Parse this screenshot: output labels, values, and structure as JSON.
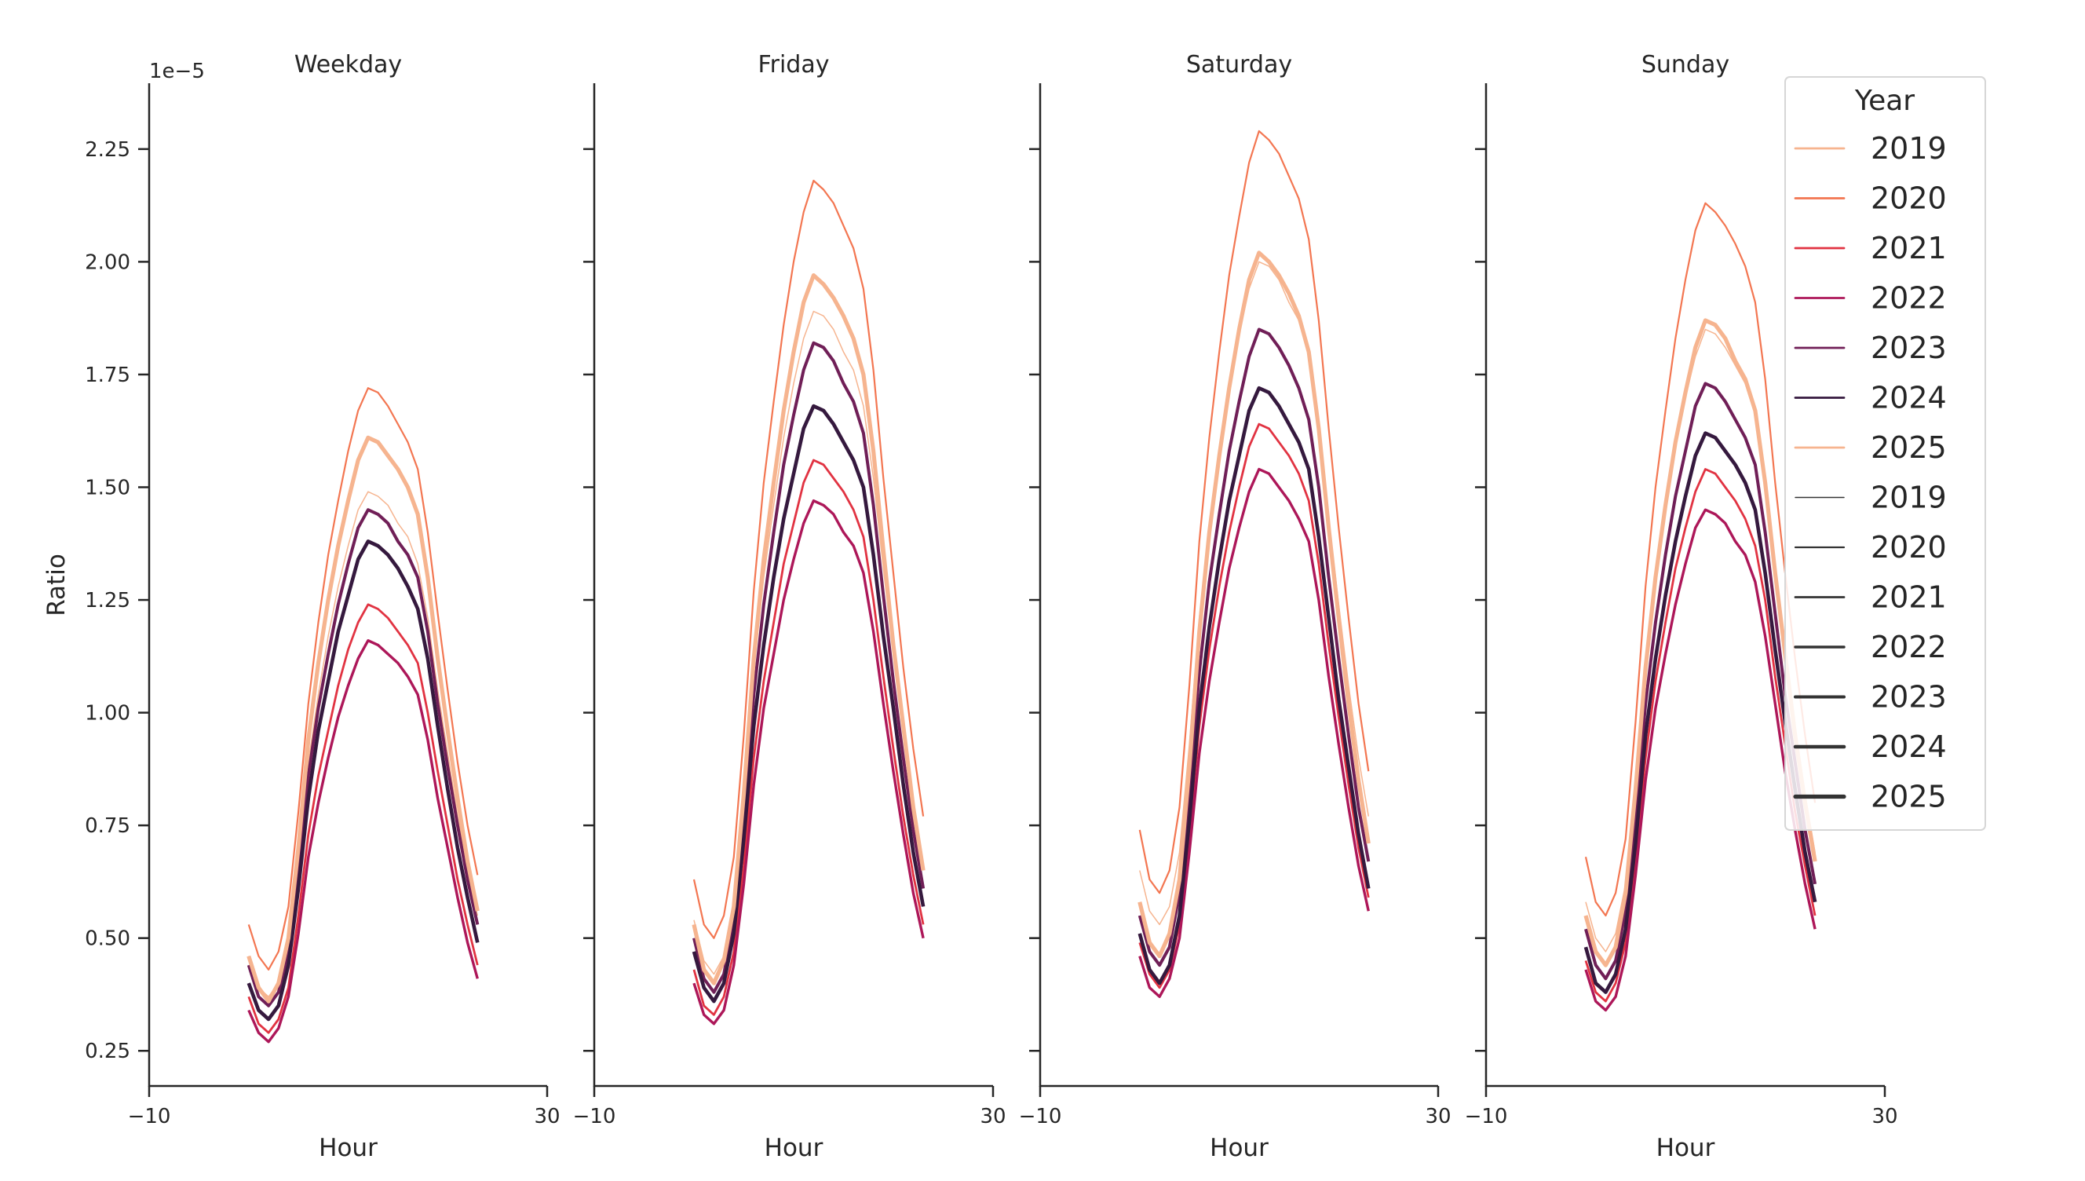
{
  "chart_data": {
    "type": "line",
    "ylabel": "Ratio",
    "xlabel": "Hour",
    "y_offset_label": "1e−5",
    "xlim": [
      -10,
      30
    ],
    "ylim": [
      0.172,
      2.396
    ],
    "x_ticks": [
      -10,
      30
    ],
    "x_tick_labels": [
      "−10",
      "30"
    ],
    "y_ticks": [
      0.25,
      0.5,
      0.75,
      1.0,
      1.25,
      1.5,
      1.75,
      2.0,
      2.25
    ],
    "y_tick_labels": [
      "0.25",
      "0.50",
      "0.75",
      "1.00",
      "1.25",
      "1.50",
      "1.75",
      "2.00",
      "2.25"
    ],
    "grid": false,
    "legend_placement": "top-right",
    "hours": [
      0,
      1,
      2,
      3,
      4,
      5,
      6,
      7,
      8,
      9,
      10,
      11,
      12,
      13,
      14,
      15,
      16,
      17,
      18,
      19,
      20,
      21,
      22,
      23
    ],
    "colors": {
      "2019": "#f6b48f",
      "2020": "#f37651",
      "2021": "#e13342",
      "2022": "#ad1759",
      "2023": "#701f57",
      "2024": "#35193e",
      "2025": "#f6b48f"
    },
    "panels": [
      {
        "title": "Weekday",
        "series": [
          {
            "name": "2019",
            "values": [
              0.46,
              0.39,
              0.37,
              0.4,
              0.49,
              0.67,
              0.89,
              1.04,
              1.17,
              1.28,
              1.37,
              1.45,
              1.49,
              1.48,
              1.46,
              1.42,
              1.39,
              1.33,
              1.21,
              1.05,
              0.91,
              0.77,
              0.65,
              0.55
            ]
          },
          {
            "name": "2020",
            "values": [
              0.53,
              0.46,
              0.43,
              0.47,
              0.57,
              0.78,
              1.02,
              1.2,
              1.35,
              1.47,
              1.58,
              1.67,
              1.72,
              1.71,
              1.68,
              1.64,
              1.6,
              1.54,
              1.4,
              1.22,
              1.05,
              0.89,
              0.75,
              0.64
            ]
          },
          {
            "name": "2021",
            "values": [
              0.37,
              0.31,
              0.29,
              0.32,
              0.39,
              0.55,
              0.73,
              0.86,
              0.96,
              1.06,
              1.14,
              1.2,
              1.24,
              1.23,
              1.21,
              1.18,
              1.15,
              1.11,
              1.0,
              0.87,
              0.75,
              0.63,
              0.53,
              0.44
            ]
          },
          {
            "name": "2022",
            "values": [
              0.34,
              0.29,
              0.27,
              0.3,
              0.37,
              0.51,
              0.68,
              0.8,
              0.9,
              0.99,
              1.06,
              1.12,
              1.16,
              1.15,
              1.13,
              1.11,
              1.08,
              1.04,
              0.94,
              0.81,
              0.7,
              0.59,
              0.49,
              0.41
            ]
          },
          {
            "name": "2023",
            "values": [
              0.44,
              0.37,
              0.35,
              0.38,
              0.47,
              0.65,
              0.86,
              1.01,
              1.13,
              1.24,
              1.33,
              1.41,
              1.45,
              1.44,
              1.42,
              1.38,
              1.35,
              1.3,
              1.18,
              1.02,
              0.88,
              0.75,
              0.63,
              0.53
            ]
          },
          {
            "name": "2024",
            "values": [
              0.4,
              0.34,
              0.32,
              0.35,
              0.44,
              0.61,
              0.81,
              0.96,
              1.07,
              1.18,
              1.26,
              1.34,
              1.38,
              1.37,
              1.35,
              1.32,
              1.28,
              1.23,
              1.12,
              0.97,
              0.83,
              0.7,
              0.59,
              0.49
            ]
          },
          {
            "name": "2025",
            "values": [
              0.46,
              0.39,
              0.36,
              0.4,
              0.5,
              0.7,
              0.94,
              1.11,
              1.25,
              1.37,
              1.47,
              1.56,
              1.61,
              1.6,
              1.57,
              1.54,
              1.5,
              1.44,
              1.3,
              1.12,
              0.96,
              0.81,
              0.67,
              0.56
            ]
          }
        ]
      },
      {
        "title": "Friday",
        "series": [
          {
            "name": "2019",
            "values": [
              0.54,
              0.45,
              0.42,
              0.46,
              0.58,
              0.82,
              1.1,
              1.3,
              1.46,
              1.61,
              1.73,
              1.83,
              1.89,
              1.88,
              1.85,
              1.8,
              1.76,
              1.68,
              1.52,
              1.32,
              1.13,
              0.95,
              0.79,
              0.66
            ]
          },
          {
            "name": "2020",
            "values": [
              0.63,
              0.53,
              0.5,
              0.55,
              0.68,
              0.95,
              1.27,
              1.51,
              1.69,
              1.86,
              2.0,
              2.11,
              2.18,
              2.16,
              2.13,
              2.08,
              2.03,
              1.94,
              1.76,
              1.52,
              1.31,
              1.1,
              0.92,
              0.77
            ]
          },
          {
            "name": "2021",
            "values": [
              0.43,
              0.35,
              0.33,
              0.37,
              0.47,
              0.66,
              0.9,
              1.07,
              1.2,
              1.33,
              1.42,
              1.51,
              1.56,
              1.55,
              1.52,
              1.49,
              1.45,
              1.39,
              1.25,
              1.08,
              0.92,
              0.77,
              0.64,
              0.53
            ]
          },
          {
            "name": "2022",
            "values": [
              0.4,
              0.33,
              0.31,
              0.34,
              0.44,
              0.62,
              0.84,
              1.01,
              1.13,
              1.25,
              1.34,
              1.42,
              1.47,
              1.46,
              1.44,
              1.4,
              1.37,
              1.31,
              1.18,
              1.02,
              0.87,
              0.73,
              0.6,
              0.5
            ]
          },
          {
            "name": "2023",
            "values": [
              0.5,
              0.41,
              0.38,
              0.42,
              0.54,
              0.77,
              1.04,
              1.24,
              1.4,
              1.55,
              1.66,
              1.76,
              1.82,
              1.81,
              1.78,
              1.73,
              1.69,
              1.62,
              1.46,
              1.26,
              1.07,
              0.9,
              0.74,
              0.61
            ]
          },
          {
            "name": "2024",
            "values": [
              0.47,
              0.39,
              0.36,
              0.4,
              0.51,
              0.72,
              0.97,
              1.15,
              1.3,
              1.43,
              1.53,
              1.63,
              1.68,
              1.67,
              1.64,
              1.6,
              1.56,
              1.5,
              1.35,
              1.17,
              1.01,
              0.84,
              0.69,
              0.57
            ]
          },
          {
            "name": "2025",
            "values": [
              0.53,
              0.43,
              0.4,
              0.45,
              0.57,
              0.82,
              1.12,
              1.34,
              1.51,
              1.67,
              1.8,
              1.91,
              1.97,
              1.95,
              1.92,
              1.88,
              1.83,
              1.75,
              1.58,
              1.36,
              1.15,
              0.97,
              0.79,
              0.65
            ]
          }
        ]
      },
      {
        "title": "Saturday",
        "series": [
          {
            "name": "2019",
            "values": [
              0.65,
              0.56,
              0.53,
              0.57,
              0.69,
              0.93,
              1.21,
              1.41,
              1.57,
              1.72,
              1.84,
              1.94,
              2.0,
              1.99,
              1.96,
              1.91,
              1.87,
              1.79,
              1.63,
              1.43,
              1.24,
              1.06,
              0.9,
              0.77
            ]
          },
          {
            "name": "2020",
            "values": [
              0.74,
              0.63,
              0.6,
              0.65,
              0.79,
              1.06,
              1.38,
              1.61,
              1.8,
              1.97,
              2.1,
              2.22,
              2.29,
              2.27,
              2.24,
              2.19,
              2.14,
              2.05,
              1.87,
              1.63,
              1.41,
              1.21,
              1.02,
              0.87
            ]
          },
          {
            "name": "2021",
            "values": [
              0.49,
              0.42,
              0.39,
              0.43,
              0.53,
              0.73,
              0.97,
              1.14,
              1.28,
              1.4,
              1.5,
              1.59,
              1.64,
              1.63,
              1.6,
              1.57,
              1.53,
              1.47,
              1.33,
              1.15,
              0.99,
              0.84,
              0.7,
              0.59
            ]
          },
          {
            "name": "2022",
            "values": [
              0.46,
              0.39,
              0.37,
              0.41,
              0.5,
              0.69,
              0.91,
              1.07,
              1.2,
              1.32,
              1.41,
              1.49,
              1.54,
              1.53,
              1.5,
              1.47,
              1.43,
              1.38,
              1.25,
              1.08,
              0.93,
              0.79,
              0.66,
              0.56
            ]
          },
          {
            "name": "2023",
            "values": [
              0.55,
              0.47,
              0.44,
              0.48,
              0.6,
              0.82,
              1.09,
              1.29,
              1.44,
              1.58,
              1.69,
              1.79,
              1.85,
              1.84,
              1.81,
              1.77,
              1.72,
              1.65,
              1.5,
              1.3,
              1.12,
              0.95,
              0.79,
              0.67
            ]
          },
          {
            "name": "2024",
            "values": [
              0.51,
              0.43,
              0.4,
              0.44,
              0.55,
              0.76,
              1.01,
              1.19,
              1.34,
              1.47,
              1.57,
              1.67,
              1.72,
              1.71,
              1.68,
              1.64,
              1.6,
              1.54,
              1.39,
              1.21,
              1.03,
              0.88,
              0.73,
              0.61
            ]
          },
          {
            "name": "2025",
            "values": [
              0.58,
              0.49,
              0.46,
              0.51,
              0.63,
              0.88,
              1.18,
              1.4,
              1.57,
              1.72,
              1.85,
              1.96,
              2.02,
              2.0,
              1.97,
              1.93,
              1.88,
              1.8,
              1.63,
              1.41,
              1.21,
              1.02,
              0.85,
              0.71
            ]
          }
        ]
      },
      {
        "title": "Sunday",
        "series": [
          {
            "name": "2019",
            "values": [
              0.58,
              0.5,
              0.47,
              0.51,
              0.62,
              0.84,
              1.1,
              1.3,
              1.45,
              1.59,
              1.7,
              1.79,
              1.85,
              1.84,
              1.81,
              1.77,
              1.73,
              1.66,
              1.51,
              1.31,
              1.13,
              0.97,
              0.82,
              0.69
            ]
          },
          {
            "name": "2020",
            "values": [
              0.68,
              0.58,
              0.55,
              0.6,
              0.72,
              0.98,
              1.28,
              1.5,
              1.67,
              1.83,
              1.96,
              2.07,
              2.13,
              2.11,
              2.08,
              2.04,
              1.99,
              1.91,
              1.74,
              1.51,
              1.31,
              1.12,
              0.95,
              0.8
            ]
          },
          {
            "name": "2021",
            "values": [
              0.45,
              0.38,
              0.36,
              0.4,
              0.49,
              0.68,
              0.9,
              1.07,
              1.2,
              1.32,
              1.41,
              1.49,
              1.54,
              1.53,
              1.5,
              1.47,
              1.43,
              1.37,
              1.25,
              1.08,
              0.93,
              0.78,
              0.66,
              0.55
            ]
          },
          {
            "name": "2022",
            "values": [
              0.43,
              0.36,
              0.34,
              0.37,
              0.46,
              0.64,
              0.85,
              1.01,
              1.13,
              1.24,
              1.33,
              1.41,
              1.45,
              1.44,
              1.42,
              1.38,
              1.35,
              1.29,
              1.17,
              1.02,
              0.87,
              0.74,
              0.62,
              0.52
            ]
          },
          {
            "name": "2023",
            "values": [
              0.52,
              0.44,
              0.41,
              0.45,
              0.56,
              0.77,
              1.02,
              1.2,
              1.35,
              1.48,
              1.58,
              1.68,
              1.73,
              1.72,
              1.69,
              1.65,
              1.61,
              1.55,
              1.4,
              1.22,
              1.04,
              0.89,
              0.74,
              0.62
            ]
          },
          {
            "name": "2024",
            "values": [
              0.48,
              0.4,
              0.38,
              0.42,
              0.52,
              0.71,
              0.95,
              1.12,
              1.26,
              1.38,
              1.48,
              1.57,
              1.62,
              1.61,
              1.58,
              1.55,
              1.51,
              1.45,
              1.31,
              1.14,
              0.98,
              0.83,
              0.69,
              0.58
            ]
          },
          {
            "name": "2025",
            "values": [
              0.55,
              0.47,
              0.44,
              0.48,
              0.6,
              0.83,
              1.1,
              1.3,
              1.46,
              1.6,
              1.71,
              1.81,
              1.87,
              1.86,
              1.83,
              1.78,
              1.74,
              1.67,
              1.51,
              1.31,
              1.13,
              0.95,
              0.8,
              0.67
            ]
          }
        ]
      }
    ],
    "legend": {
      "title": "Year",
      "color_entries": [
        "2019",
        "2020",
        "2021",
        "2022",
        "2023",
        "2024",
        "2025"
      ],
      "size_entries": [
        "2019",
        "2020",
        "2021",
        "2022",
        "2023",
        "2024",
        "2025"
      ]
    }
  }
}
